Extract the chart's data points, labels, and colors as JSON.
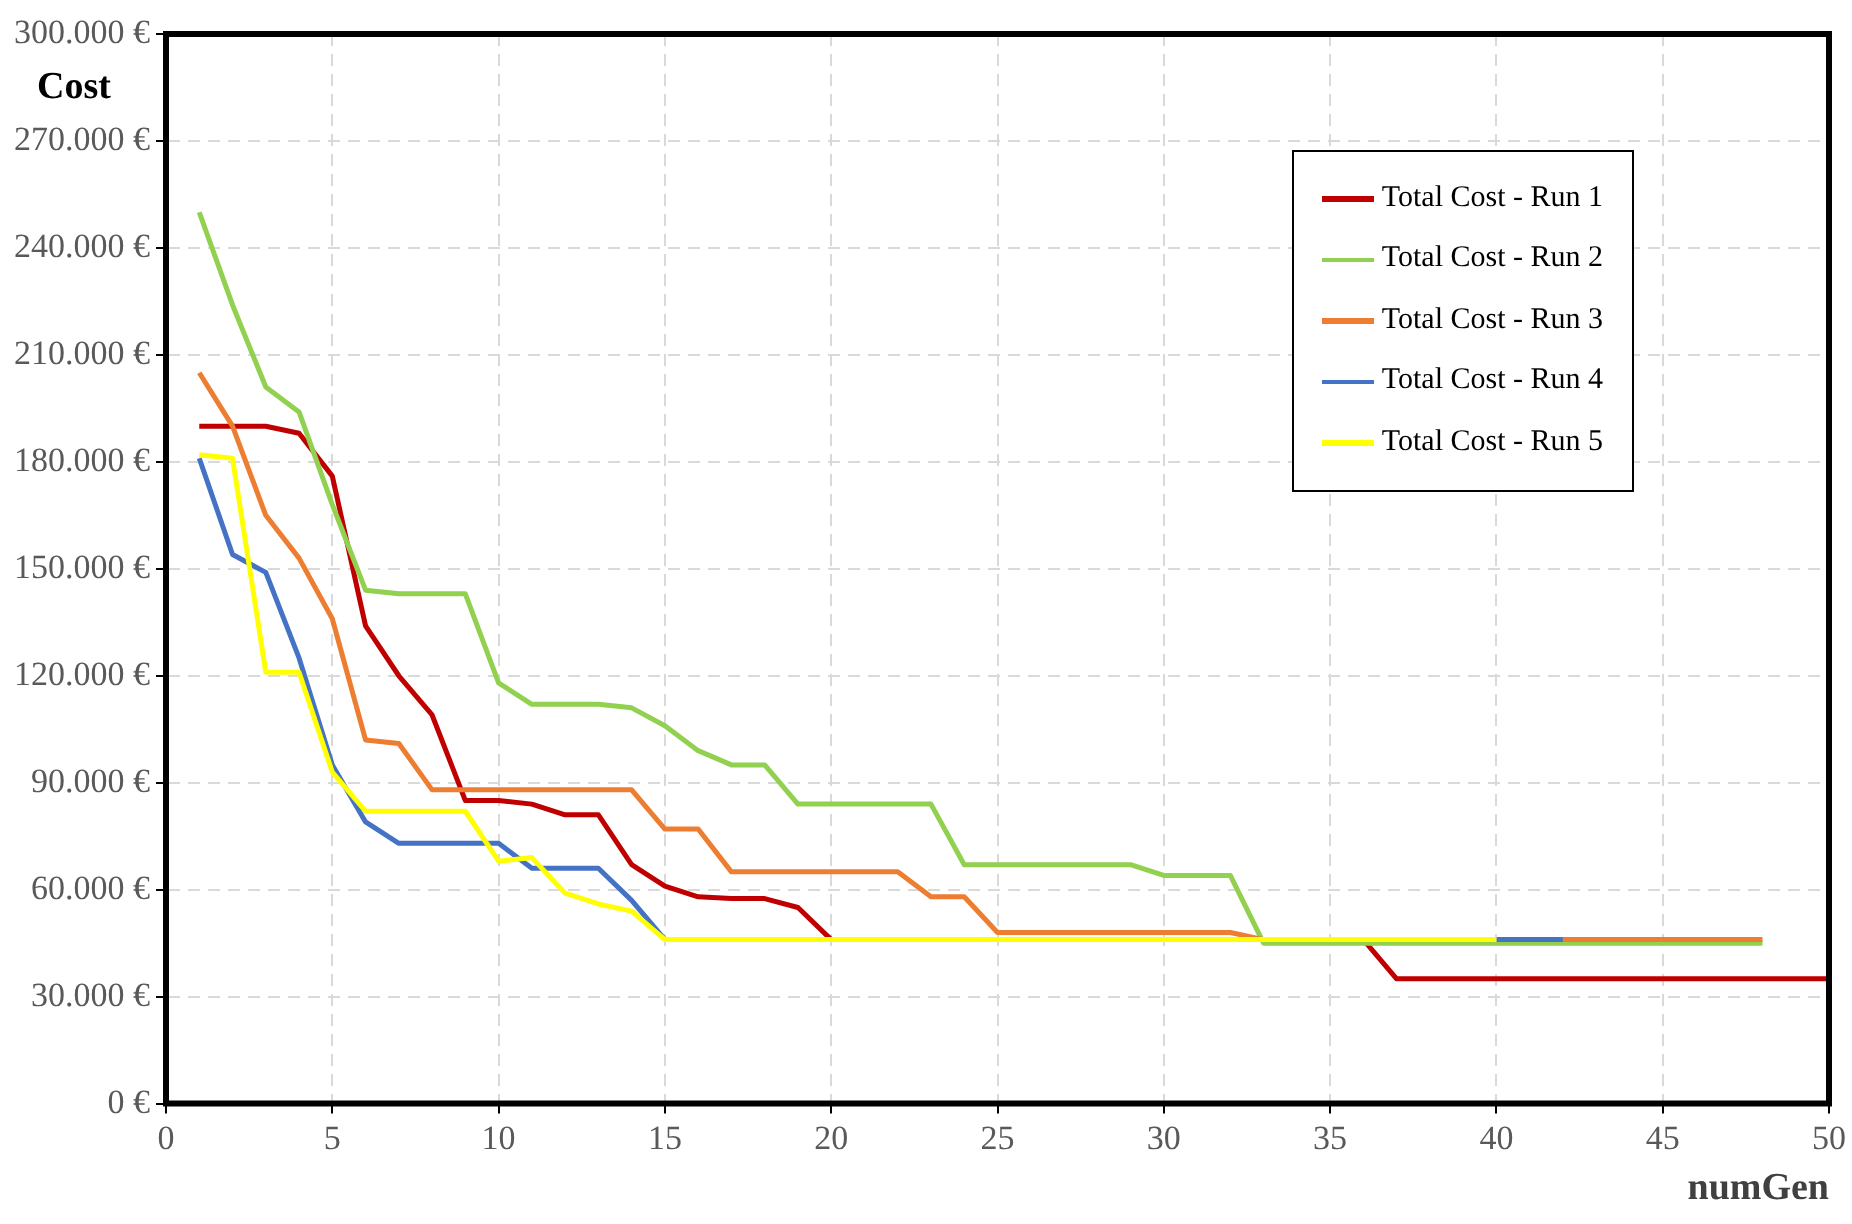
{
  "chart_data": {
    "type": "line",
    "xlabel": "numGen",
    "ylabel": "Cost",
    "xlim": [
      0,
      50
    ],
    "xticks": [
      0,
      5,
      10,
      15,
      20,
      25,
      30,
      35,
      40,
      45,
      50
    ],
    "ylim": [
      0,
      300000
    ],
    "yticks": [
      {
        "value": 0,
        "label": "0 €"
      },
      {
        "value": 30000,
        "label": "30.000 €"
      },
      {
        "value": 60000,
        "label": "60.000 €"
      },
      {
        "value": 90000,
        "label": "90.000 €"
      },
      {
        "value": 120000,
        "label": "120.000 €"
      },
      {
        "value": 150000,
        "label": "150.000 €"
      },
      {
        "value": 180000,
        "label": "180.000 €"
      },
      {
        "value": 210000,
        "label": "210.000 €"
      },
      {
        "value": 240000,
        "label": "240.000 €"
      },
      {
        "value": 270000,
        "label": "270.000 €"
      },
      {
        "value": 300000,
        "label": "300.000 €"
      }
    ],
    "grid": true,
    "legend": "top right",
    "marker": "none",
    "line_style": "solid",
    "x": [
      1,
      2,
      3,
      4,
      5,
      6,
      7,
      8,
      9,
      10,
      11,
      12,
      13,
      14,
      15,
      16,
      17,
      18,
      19,
      20,
      21,
      22,
      23,
      24,
      25,
      26,
      27,
      28,
      29,
      30,
      31,
      32,
      33,
      34,
      35,
      36,
      37,
      38,
      39,
      40,
      41,
      42,
      43,
      44,
      45,
      46,
      47,
      48,
      49,
      50
    ],
    "series": [
      {
        "name": "Total Cost - Run 1",
        "color": "#c00000",
        "values": [
          190000,
          190000,
          190000,
          188000,
          176000,
          134000,
          120000,
          109000,
          85000,
          85000,
          84000,
          81000,
          81000,
          67000,
          61000,
          58000,
          57500,
          57500,
          55000,
          46000,
          null,
          null,
          null,
          null,
          null,
          null,
          null,
          null,
          null,
          null,
          null,
          null,
          null,
          null,
          null,
          46000,
          35000,
          35000,
          35000,
          35000,
          35000,
          35000,
          35000,
          35000,
          35000,
          35000,
          35000,
          35000,
          35000,
          35000
        ]
      },
      {
        "name": "Total Cost - Run 2",
        "color": "#92d050",
        "values": [
          250000,
          224000,
          201000,
          194000,
          168000,
          144000,
          143000,
          143000,
          143000,
          118000,
          112000,
          112000,
          112000,
          111000,
          106000,
          99000,
          95000,
          95000,
          84000,
          84000,
          84000,
          84000,
          84000,
          67000,
          67000,
          67000,
          67000,
          67000,
          67000,
          64000,
          64000,
          64000,
          45000,
          45000,
          45000,
          45000,
          45000,
          45000,
          45000,
          45000,
          45000,
          45000,
          45000,
          45000,
          45000,
          45000,
          45000,
          45000,
          null,
          null
        ]
      },
      {
        "name": "Total Cost - Run 3",
        "color": "#ed7d31",
        "values": [
          205000,
          190000,
          165000,
          153000,
          136000,
          102000,
          101000,
          88000,
          88000,
          88000,
          88000,
          88000,
          88000,
          88000,
          77000,
          77000,
          65000,
          65000,
          65000,
          65000,
          65000,
          65000,
          58000,
          58000,
          48000,
          48000,
          48000,
          48000,
          48000,
          48000,
          48000,
          48000,
          46000,
          null,
          null,
          null,
          null,
          null,
          null,
          null,
          null,
          46000,
          46000,
          46000,
          46000,
          46000,
          46000,
          46000,
          null,
          null
        ]
      },
      {
        "name": "Total Cost - Run 4",
        "color": "#4472c4",
        "values": [
          181000,
          154000,
          149000,
          125000,
          95000,
          79000,
          73000,
          73000,
          73000,
          73000,
          66000,
          66000,
          66000,
          57000,
          46000,
          null,
          null,
          null,
          null,
          null,
          null,
          null,
          null,
          null,
          null,
          null,
          null,
          null,
          null,
          null,
          null,
          null,
          null,
          null,
          null,
          null,
          null,
          null,
          null,
          46000,
          46000,
          46000,
          null,
          null,
          null,
          null,
          null,
          null,
          null,
          null
        ]
      },
      {
        "name": "Total Cost - Run 5",
        "color": "#ffff00",
        "values": [
          182000,
          181000,
          121000,
          121000,
          93000,
          82000,
          82000,
          82000,
          82000,
          68000,
          69000,
          59000,
          56000,
          54000,
          46000,
          46000,
          46000,
          46000,
          46000,
          46000,
          46000,
          46000,
          46000,
          46000,
          46000,
          46000,
          46000,
          46000,
          46000,
          46000,
          46000,
          46000,
          46000,
          46000,
          46000,
          46000,
          46000,
          46000,
          46000,
          46000,
          null,
          null,
          null,
          null,
          null,
          null,
          null,
          null,
          null,
          null
        ]
      }
    ]
  }
}
